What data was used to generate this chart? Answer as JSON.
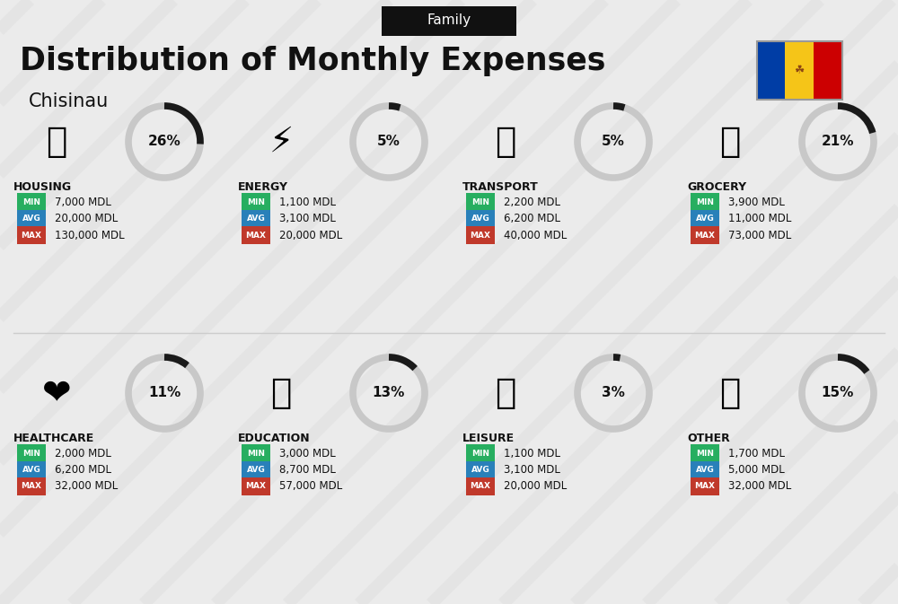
{
  "title": "Distribution of Monthly Expenses",
  "subtitle": "Chisinau",
  "family_label": "Family",
  "bg_color": "#ebebeb",
  "categories": [
    {
      "name": "HOUSING",
      "percent": 26,
      "min": "7,000 MDL",
      "avg": "20,000 MDL",
      "max": "130,000 MDL",
      "col": 0,
      "row": 0
    },
    {
      "name": "ENERGY",
      "percent": 5,
      "min": "1,100 MDL",
      "avg": "3,100 MDL",
      "max": "20,000 MDL",
      "col": 1,
      "row": 0
    },
    {
      "name": "TRANSPORT",
      "percent": 5,
      "min": "2,200 MDL",
      "avg": "6,200 MDL",
      "max": "40,000 MDL",
      "col": 2,
      "row": 0
    },
    {
      "name": "GROCERY",
      "percent": 21,
      "min": "3,900 MDL",
      "avg": "11,000 MDL",
      "max": "73,000 MDL",
      "col": 3,
      "row": 0
    },
    {
      "name": "HEALTHCARE",
      "percent": 11,
      "min": "2,000 MDL",
      "avg": "6,200 MDL",
      "max": "32,000 MDL",
      "col": 0,
      "row": 1
    },
    {
      "name": "EDUCATION",
      "percent": 13,
      "min": "3,000 MDL",
      "avg": "8,700 MDL",
      "max": "57,000 MDL",
      "col": 1,
      "row": 1
    },
    {
      "name": "LEISURE",
      "percent": 3,
      "min": "1,100 MDL",
      "avg": "3,100 MDL",
      "max": "20,000 MDL",
      "col": 2,
      "row": 1
    },
    {
      "name": "OTHER",
      "percent": 15,
      "min": "1,700 MDL",
      "avg": "5,000 MDL",
      "max": "32,000 MDL",
      "col": 3,
      "row": 1
    }
  ],
  "min_color": "#27ae60",
  "avg_color": "#2980b9",
  "max_color": "#c0392b",
  "title_color": "#111111",
  "category_name_color": "#111111",
  "percent_color": "#111111",
  "donut_fill_color": "#1a1a1a",
  "donut_bg_color": "#c8c8c8",
  "flag_colors": [
    "#003DA5",
    "#F5C518",
    "#CC0001"
  ],
  "header_bg": "#111111",
  "header_text": "#ffffff"
}
